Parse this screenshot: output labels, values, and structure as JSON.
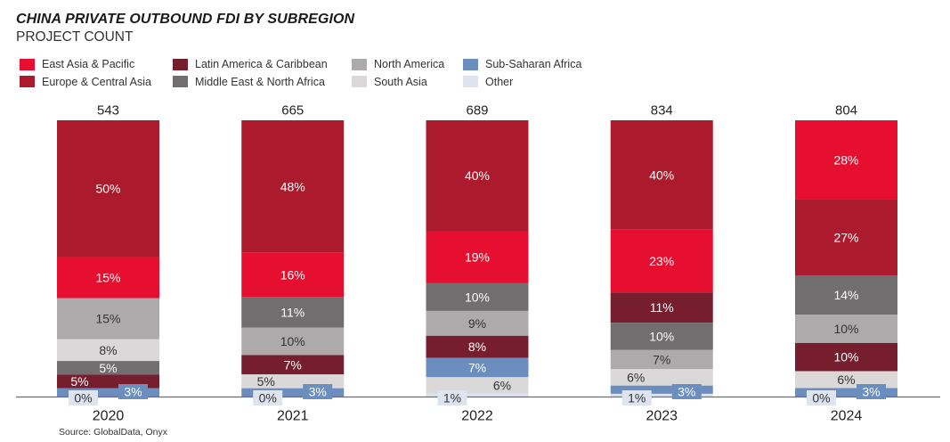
{
  "chart_data": {
    "type": "bar",
    "stacked": true,
    "normalized_to_percent": true,
    "title": "CHINA PRIVATE OUTBOUND FDI BY SUBREGION",
    "subtitle": "PROJECT COUNT",
    "xlabel": "",
    "ylabel": "",
    "value_unit": "%",
    "grid": false,
    "legend_position": "top-left",
    "categories": [
      "2020",
      "2021",
      "2022",
      "2023",
      "2024"
    ],
    "totals": [
      543,
      665,
      689,
      834,
      804
    ],
    "series": [
      {
        "name": "East Asia & Pacific",
        "color": "#e60f2f",
        "values": [
          15,
          16,
          19,
          23,
          28
        ]
      },
      {
        "name": "Europe & Central Asia",
        "color": "#ab1a2d",
        "values": [
          50,
          48,
          40,
          40,
          27
        ]
      },
      {
        "name": "Latin America & Caribbean",
        "color": "#761e2d",
        "values": [
          5,
          7,
          8,
          11,
          10
        ]
      },
      {
        "name": "Middle East & North Africa",
        "color": "#726d6f",
        "values": [
          5,
          11,
          10,
          10,
          14
        ]
      },
      {
        "name": "North America",
        "color": "#adaaab",
        "values": [
          15,
          10,
          9,
          7,
          10
        ]
      },
      {
        "name": "South Asia",
        "color": "#dad8d9",
        "values": [
          8,
          5,
          6,
          6,
          6
        ]
      },
      {
        "name": "Sub-Saharan Africa",
        "color": "#6c8ebf",
        "values": [
          3,
          3,
          7,
          3,
          3
        ]
      },
      {
        "name": "Other",
        "color": "#dde3ef",
        "values": [
          0,
          0,
          1,
          1,
          0
        ]
      }
    ],
    "stack_order_top_to_bottom": [
      [
        "Europe & Central Asia",
        "East Asia & Pacific",
        "North America",
        "South Asia",
        "Middle East & North Africa",
        "Latin America & Caribbean",
        "Sub-Saharan Africa",
        "Other"
      ],
      [
        "Europe & Central Asia",
        "East Asia & Pacific",
        "Middle East & North Africa",
        "North America",
        "Latin America & Caribbean",
        "South Asia",
        "Sub-Saharan Africa",
        "Other"
      ],
      [
        "Europe & Central Asia",
        "East Asia & Pacific",
        "Middle East & North Africa",
        "North America",
        "Latin America & Caribbean",
        "Sub-Saharan Africa",
        "South Asia",
        "Other"
      ],
      [
        "Europe & Central Asia",
        "East Asia & Pacific",
        "Latin America & Caribbean",
        "Middle East & North Africa",
        "North America",
        "South Asia",
        "Sub-Saharan Africa",
        "Other"
      ],
      [
        "East Asia & Pacific",
        "Europe & Central Asia",
        "Middle East & North Africa",
        "North America",
        "Latin America & Caribbean",
        "South Asia",
        "Sub-Saharan Africa",
        "Other"
      ]
    ],
    "source": "Source: GlobalData, Onyx"
  }
}
